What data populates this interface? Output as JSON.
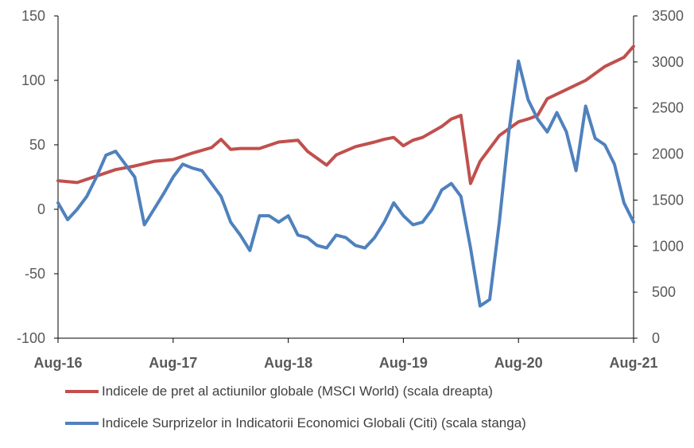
{
  "colors": {
    "msci": "#C0504D",
    "citi": "#4F81BD",
    "axis": "#000000",
    "text": "#595959"
  },
  "legend": [
    {
      "label": "Indicele de pret al actiunilor globale (MSCI World) (scala dreapta)"
    },
    {
      "label": "Indicele Surprizelor in Indicatorii Economici Globali (Citi) (scala stanga)"
    }
  ],
  "chart_data": {
    "type": "line",
    "x_ticks": [
      "Aug-16",
      "Aug-17",
      "Aug-18",
      "Aug-19",
      "Aug-20",
      "Aug-21"
    ],
    "y_left": {
      "min": -100,
      "max": 150,
      "ticks": [
        -100,
        -50,
        0,
        50,
        100,
        150
      ]
    },
    "y_right": {
      "min": 0,
      "max": 3500,
      "ticks": [
        0,
        500,
        1000,
        1500,
        2000,
        2500,
        3000,
        3500
      ]
    },
    "grid": false,
    "legend_placement": "bottom",
    "series": [
      {
        "name": "Indicele de pret al actiunilor globale (MSCI World) (scala dreapta)",
        "axis": "right",
        "points": [
          [
            "2016-08",
            1710
          ],
          [
            "2016-10",
            1690
          ],
          [
            "2016-12",
            1760
          ],
          [
            "2017-02",
            1830
          ],
          [
            "2017-04",
            1870
          ],
          [
            "2017-06",
            1920
          ],
          [
            "2017-08",
            1940
          ],
          [
            "2017-10",
            2010
          ],
          [
            "2017-12",
            2070
          ],
          [
            "2018-01",
            2160
          ],
          [
            "2018-02",
            2050
          ],
          [
            "2018-03",
            2060
          ],
          [
            "2018-05",
            2060
          ],
          [
            "2018-07",
            2130
          ],
          [
            "2018-09",
            2150
          ],
          [
            "2018-10",
            2030
          ],
          [
            "2018-12",
            1880
          ],
          [
            "2019-01",
            1990
          ],
          [
            "2019-03",
            2080
          ],
          [
            "2019-05",
            2130
          ],
          [
            "2019-06",
            2160
          ],
          [
            "2019-07",
            2180
          ],
          [
            "2019-08",
            2090
          ],
          [
            "2019-09",
            2150
          ],
          [
            "2019-10",
            2180
          ],
          [
            "2019-12",
            2300
          ],
          [
            "2020-01",
            2380
          ],
          [
            "2020-02",
            2420
          ],
          [
            "2020-03",
            1680
          ],
          [
            "2020-04",
            1920
          ],
          [
            "2020-06",
            2200
          ],
          [
            "2020-08",
            2350
          ],
          [
            "2020-09",
            2380
          ],
          [
            "2020-10",
            2420
          ],
          [
            "2020-11",
            2600
          ],
          [
            "2021-01",
            2700
          ],
          [
            "2021-03",
            2800
          ],
          [
            "2021-05",
            2950
          ],
          [
            "2021-07",
            3050
          ],
          [
            "2021-08",
            3170
          ]
        ]
      },
      {
        "name": "Indicele Surprizelor in Indicatorii Economici Globali (Citi) (scala stanga)",
        "axis": "left",
        "points": [
          [
            "2016-08",
            5
          ],
          [
            "2016-09",
            -8
          ],
          [
            "2016-10",
            0
          ],
          [
            "2016-11",
            10
          ],
          [
            "2016-12",
            25
          ],
          [
            "2017-01",
            42
          ],
          [
            "2017-02",
            45
          ],
          [
            "2017-03",
            35
          ],
          [
            "2017-04",
            25
          ],
          [
            "2017-05",
            -12
          ],
          [
            "2017-06",
            0
          ],
          [
            "2017-07",
            12
          ],
          [
            "2017-08",
            25
          ],
          [
            "2017-09",
            35
          ],
          [
            "2017-10",
            32
          ],
          [
            "2017-11",
            30
          ],
          [
            "2017-12",
            20
          ],
          [
            "2018-01",
            10
          ],
          [
            "2018-02",
            -10
          ],
          [
            "2018-03",
            -20
          ],
          [
            "2018-04",
            -32
          ],
          [
            "2018-05",
            -5
          ],
          [
            "2018-06",
            -5
          ],
          [
            "2018-07",
            -10
          ],
          [
            "2018-08",
            -5
          ],
          [
            "2018-09",
            -20
          ],
          [
            "2018-10",
            -22
          ],
          [
            "2018-11",
            -28
          ],
          [
            "2018-12",
            -30
          ],
          [
            "2019-01",
            -20
          ],
          [
            "2019-02",
            -22
          ],
          [
            "2019-03",
            -28
          ],
          [
            "2019-04",
            -30
          ],
          [
            "2019-05",
            -22
          ],
          [
            "2019-06",
            -10
          ],
          [
            "2019-07",
            5
          ],
          [
            "2019-08",
            -5
          ],
          [
            "2019-09",
            -12
          ],
          [
            "2019-10",
            -10
          ],
          [
            "2019-11",
            0
          ],
          [
            "2019-12",
            15
          ],
          [
            "2020-01",
            20
          ],
          [
            "2020-02",
            10
          ],
          [
            "2020-03",
            -30
          ],
          [
            "2020-04",
            -75
          ],
          [
            "2020-05",
            -70
          ],
          [
            "2020-06",
            -10
          ],
          [
            "2020-07",
            60
          ],
          [
            "2020-08",
            115
          ],
          [
            "2020-09",
            85
          ],
          [
            "2020-10",
            70
          ],
          [
            "2020-11",
            60
          ],
          [
            "2020-12",
            75
          ],
          [
            "2021-01",
            60
          ],
          [
            "2021-02",
            30
          ],
          [
            "2021-03",
            80
          ],
          [
            "2021-04",
            55
          ],
          [
            "2021-05",
            50
          ],
          [
            "2021-06",
            35
          ],
          [
            "2021-07",
            5
          ],
          [
            "2021-08",
            -10
          ]
        ]
      }
    ]
  }
}
